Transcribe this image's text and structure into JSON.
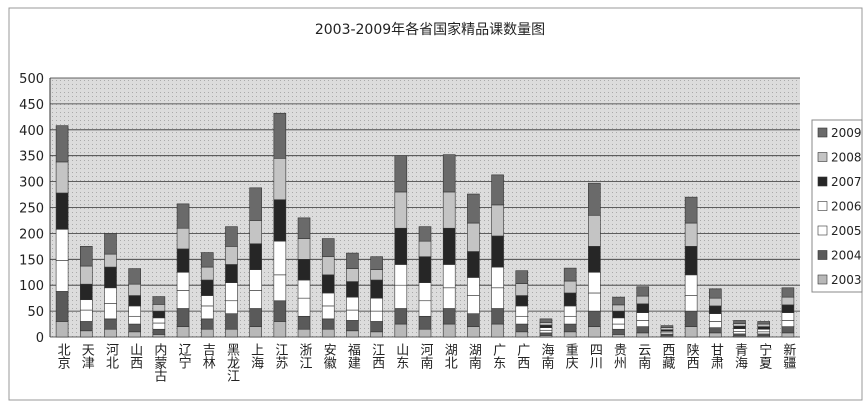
{
  "chart_data": {
    "type": "stacked_bar",
    "title": "2003-2009年各省国家精品课数量图",
    "categories": [
      "北京",
      "天津",
      "河北",
      "山西",
      "内蒙古",
      "辽宁",
      "吉林",
      "黑龙江",
      "上海",
      "江苏",
      "浙江",
      "安徽",
      "福建",
      "江西",
      "山东",
      "河南",
      "湖北",
      "湖南",
      "广东",
      "广西",
      "海南",
      "重庆",
      "四川",
      "贵州",
      "云南",
      "西藏",
      "陕西",
      "甘肃",
      "青海",
      "宁夏",
      "新疆"
    ],
    "series": [
      {
        "name": "2003",
        "color": "#b8b8b8",
        "values": [
          30,
          12,
          15,
          10,
          5,
          20,
          15,
          15,
          20,
          30,
          15,
          15,
          12,
          10,
          25,
          15,
          25,
          20,
          25,
          10,
          3,
          10,
          20,
          5,
          8,
          2,
          20,
          8,
          2,
          2,
          8
        ]
      },
      {
        "name": "2004",
        "color": "#5a5a5a",
        "values": [
          58,
          18,
          20,
          15,
          10,
          35,
          20,
          30,
          35,
          40,
          25,
          20,
          20,
          20,
          30,
          25,
          30,
          25,
          30,
          15,
          5,
          15,
          30,
          10,
          12,
          3,
          30,
          10,
          4,
          4,
          12
        ]
      },
      {
        "name": "2005",
        "color": "#ffffff",
        "values": [
          60,
          22,
          30,
          15,
          12,
          35,
          25,
          25,
          35,
          50,
          35,
          25,
          20,
          20,
          45,
          30,
          40,
          35,
          40,
          15,
          5,
          15,
          35,
          10,
          12,
          3,
          30,
          12,
          5,
          4,
          12
        ]
      },
      {
        "name": "2006",
        "color": "#ffffff",
        "values": [
          60,
          20,
          30,
          20,
          10,
          35,
          20,
          35,
          40,
          65,
          35,
          25,
          25,
          25,
          40,
          35,
          45,
          35,
          40,
          20,
          5,
          20,
          40,
          12,
          15,
          3,
          40,
          15,
          5,
          5,
          15
        ]
      },
      {
        "name": "2007",
        "color": "#262626",
        "values": [
          70,
          30,
          40,
          20,
          13,
          45,
          30,
          35,
          50,
          80,
          40,
          35,
          30,
          35,
          70,
          50,
          70,
          50,
          60,
          20,
          5,
          25,
          50,
          13,
          17,
          3,
          55,
          15,
          5,
          5,
          15
        ]
      },
      {
        "name": "2008",
        "color": "#c4c4c4",
        "values": [
          60,
          35,
          25,
          22,
          13,
          40,
          25,
          35,
          45,
          80,
          40,
          35,
          25,
          20,
          70,
          30,
          70,
          55,
          60,
          23,
          5,
          23,
          60,
          12,
          15,
          4,
          45,
          15,
          5,
          5,
          15
        ]
      },
      {
        "name": "2009",
        "color": "#6a6a6a",
        "values": [
          70,
          38,
          40,
          30,
          15,
          47,
          28,
          38,
          63,
          87,
          40,
          35,
          30,
          25,
          70,
          28,
          72,
          56,
          58,
          25,
          7,
          25,
          62,
          15,
          18,
          4,
          50,
          18,
          6,
          5,
          18
        ]
      }
    ],
    "ylim": [
      0,
      500
    ],
    "yticks": [
      0,
      50,
      100,
      150,
      200,
      250,
      300,
      350,
      400,
      450,
      500
    ],
    "grid": true,
    "legend": "right"
  }
}
